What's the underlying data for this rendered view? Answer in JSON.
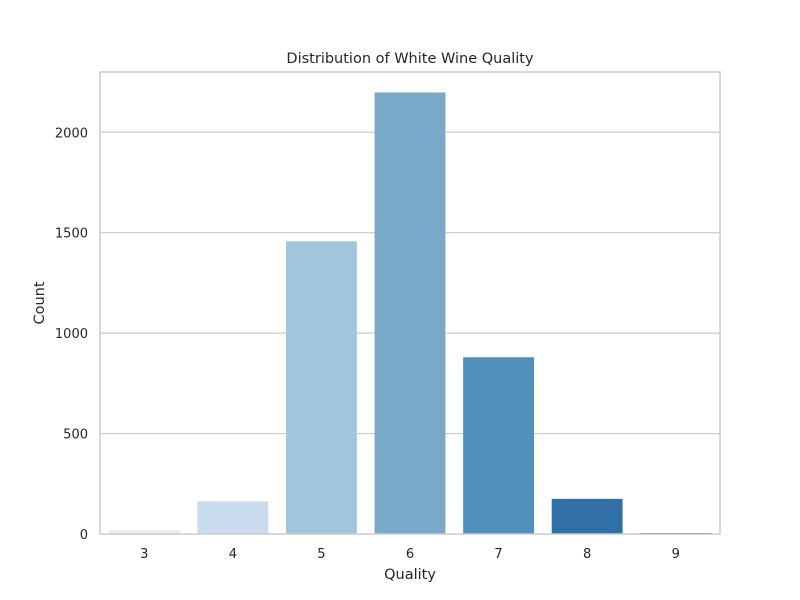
{
  "chart_data": {
    "type": "bar",
    "title": "Distribution of White Wine Quality",
    "xlabel": "Quality",
    "ylabel": "Count",
    "categories": [
      "3",
      "4",
      "5",
      "6",
      "7",
      "8",
      "9"
    ],
    "values": [
      20,
      163,
      1457,
      2198,
      880,
      175,
      5
    ],
    "ylim": [
      0,
      2300
    ],
    "yticks": [
      0,
      500,
      1000,
      1500,
      2000
    ],
    "grid": "horizontal",
    "legend": "none",
    "colors": [
      "#e4eef8",
      "#c9dbed",
      "#a1c6db",
      "#78a9c8",
      "#5190bb",
      "#3070a6",
      "#1b548f"
    ]
  }
}
